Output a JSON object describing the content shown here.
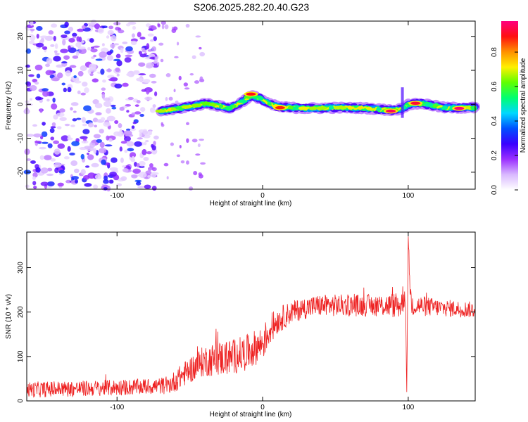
{
  "title": "S206.2025.282.20.40.G23",
  "chart_data": [
    {
      "type": "heatmap",
      "xlabel": "Height of straight line (km)",
      "ylabel": "Frequency (Hz)",
      "xlim": [
        -162,
        146
      ],
      "ylim": [
        -25,
        24.5
      ],
      "xticks": [
        -100,
        0,
        100
      ],
      "yticks": [
        -20,
        -10,
        0,
        10,
        20
      ],
      "colorbar": {
        "label": "Normalized spectral amplitude",
        "range": [
          0,
          0.98
        ],
        "ticks": [
          0.0,
          0.2,
          0.4,
          0.6,
          0.8
        ],
        "colors": [
          "#ffffff",
          "#d9b9ff",
          "#9b30ff",
          "#3a00ff",
          "#0050ff",
          "#00d8ff",
          "#00ff70",
          "#60ff00",
          "#fff000",
          "#ff9000",
          "#ff1010",
          "#ff007f"
        ]
      },
      "ridge_points": [
        {
          "x": -70,
          "y": -2.0
        },
        {
          "x": -62,
          "y": -1.5
        },
        {
          "x": -55,
          "y": -1.0
        },
        {
          "x": -45,
          "y": -0.3
        },
        {
          "x": -38,
          "y": 0.3
        },
        {
          "x": -30,
          "y": -0.5
        },
        {
          "x": -22,
          "y": -1.2
        },
        {
          "x": -15,
          "y": 0.5
        },
        {
          "x": -8,
          "y": 2.5
        },
        {
          "x": -2,
          "y": 1.8
        },
        {
          "x": 5,
          "y": 0.0
        },
        {
          "x": 12,
          "y": -0.8
        },
        {
          "x": 30,
          "y": -1.2
        },
        {
          "x": 50,
          "y": -1.0
        },
        {
          "x": 70,
          "y": -1.1
        },
        {
          "x": 90,
          "y": -1.8
        },
        {
          "x": 96,
          "y": -1.2
        },
        {
          "x": 100,
          "y": 0.0
        },
        {
          "x": 110,
          "y": 0.2
        },
        {
          "x": 125,
          "y": -1.0
        },
        {
          "x": 146,
          "y": -1.0
        }
      ],
      "hot_spots": [
        {
          "x": -8,
          "y": 3.0,
          "amp": 0.9
        },
        {
          "x": 12,
          "y": -1.0,
          "amp": 0.88
        },
        {
          "x": 88,
          "y": -2.0,
          "amp": 0.95
        },
        {
          "x": 105,
          "y": 0.3,
          "amp": 0.92
        },
        {
          "x": 135,
          "y": -1.2,
          "amp": 0.97
        }
      ],
      "noise_region": {
        "x_from": -162,
        "x_to": -75,
        "amp_range": [
          0.05,
          0.35
        ]
      }
    },
    {
      "type": "line",
      "xlabel": "Height of straight line (km)",
      "ylabel": "SNR (10 * v/v)",
      "xlim": [
        -162,
        146
      ],
      "ylim": [
        0,
        380
      ],
      "xticks": [
        -100,
        0,
        100
      ],
      "yticks": [
        0,
        100,
        200,
        300
      ],
      "color": "#ee2222",
      "series": [
        {
          "name": "SNR",
          "x": [
            -162,
            -140,
            -120,
            -100,
            -80,
            -65,
            -60,
            -50,
            -40,
            -30,
            -20,
            -10,
            0,
            5,
            10,
            20,
            30,
            40,
            60,
            80,
            95,
            98,
            99,
            100,
            101,
            102,
            105,
            120,
            146
          ],
          "y": [
            25,
            27,
            28,
            30,
            32,
            35,
            45,
            70,
            90,
            95,
            100,
            110,
            130,
            160,
            180,
            200,
            210,
            215,
            215,
            215,
            215,
            250,
            20,
            370,
            280,
            220,
            215,
            210,
            205
          ],
          "noise_amplitude": [
            18,
            18,
            18,
            18,
            18,
            20,
            25,
            30,
            35,
            40,
            40,
            40,
            40,
            35,
            30,
            25,
            25,
            25,
            25,
            25,
            30,
            40,
            0,
            0,
            30,
            30,
            25,
            20,
            18
          ]
        }
      ]
    }
  ]
}
